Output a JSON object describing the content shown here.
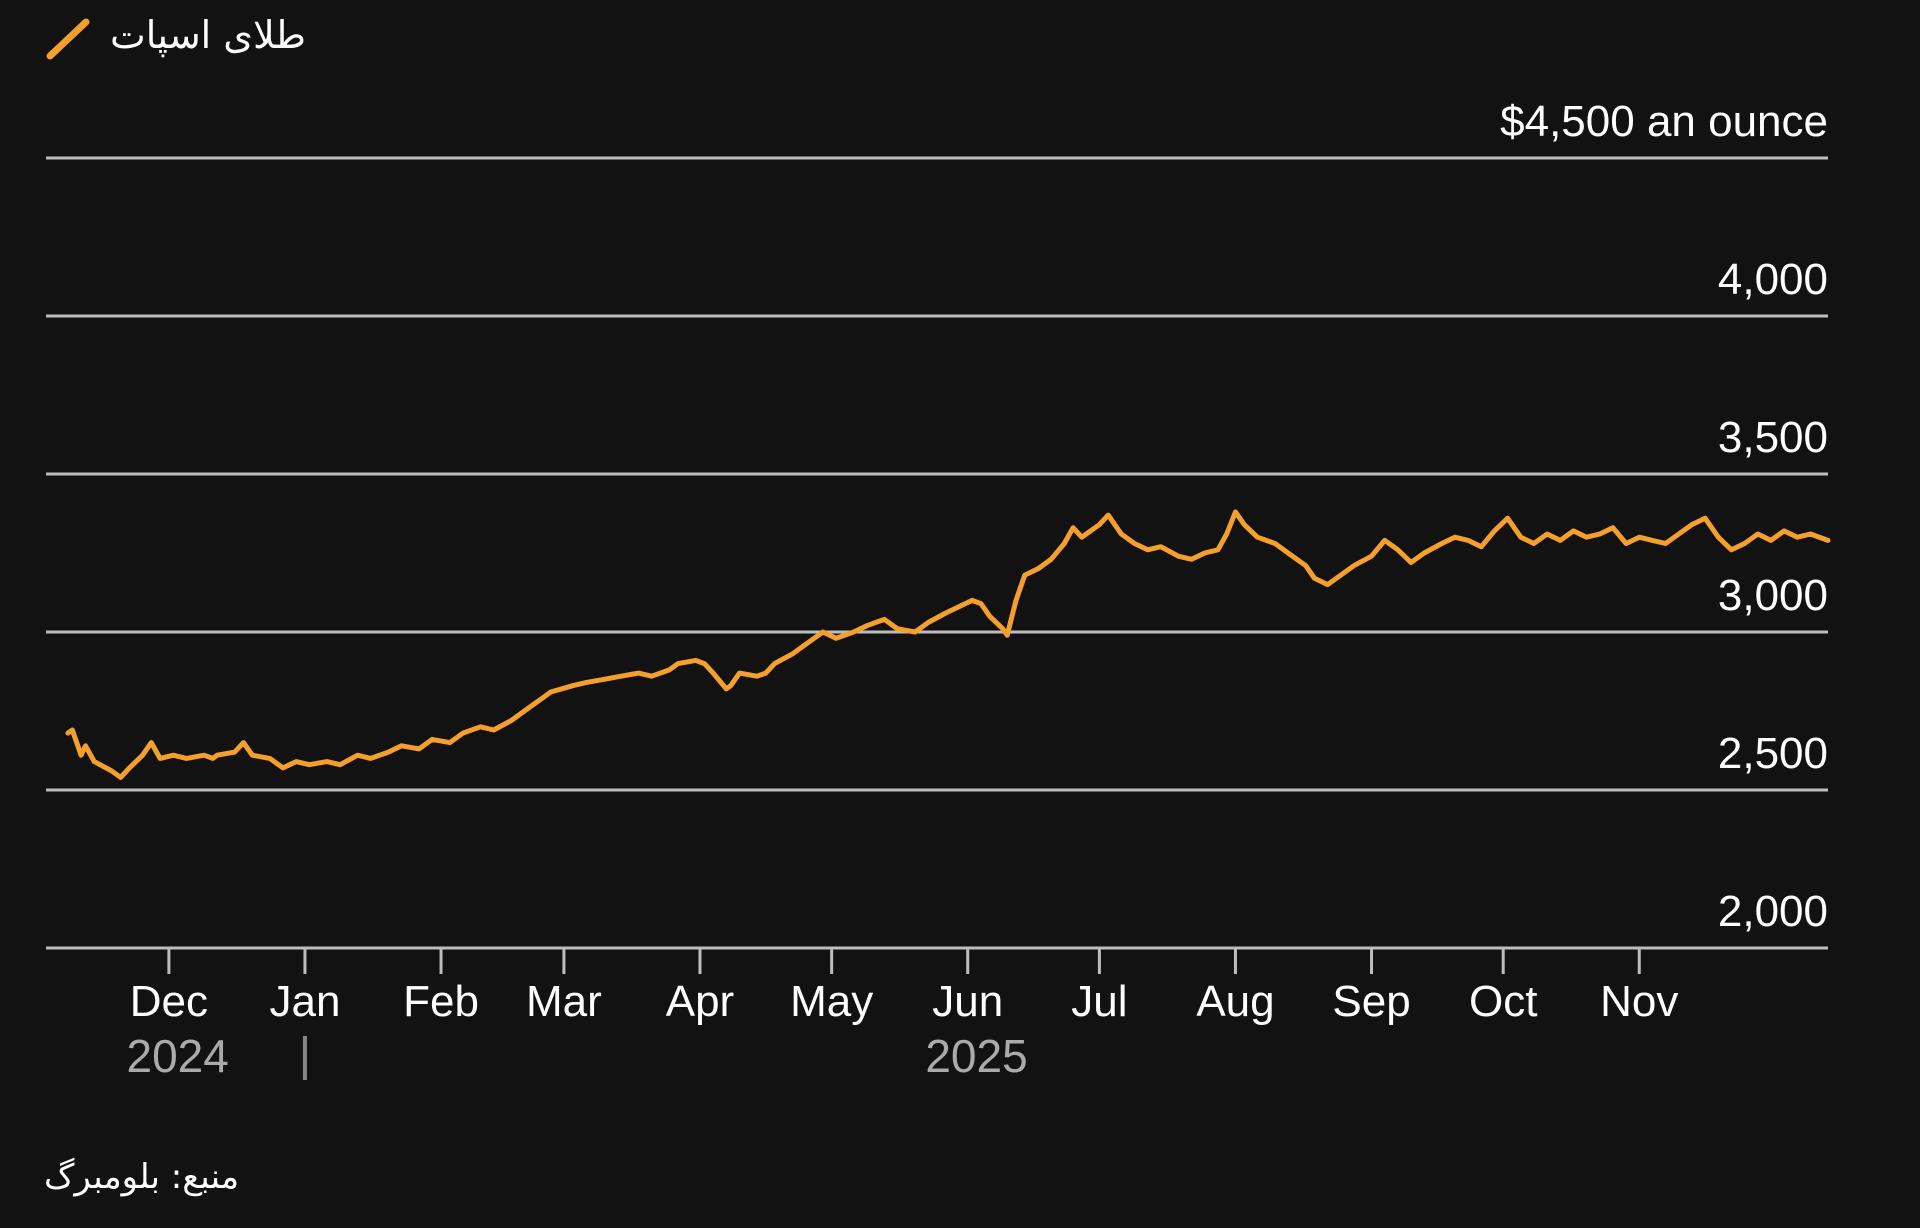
{
  "colors": {
    "background": "#121212",
    "line": "#F5A02A",
    "grid": "#bdbdbd",
    "text": "#ffffff",
    "muted": "#aaaaaa"
  },
  "legend": {
    "icon": "line-swatch-icon",
    "label": "طلای اسپات"
  },
  "source": "منبع: بلومبرگ",
  "chart_data": {
    "type": "line",
    "y_unit_label": "$4,500 an ounce",
    "ylim": [
      2000,
      4500
    ],
    "yticks": [
      {
        "value": 4500,
        "label": "$4,500 an ounce"
      },
      {
        "value": 4000,
        "label": "4,000"
      },
      {
        "value": 3500,
        "label": "3,500"
      },
      {
        "value": 3000,
        "label": "3,000"
      },
      {
        "value": 2500,
        "label": "2,500"
      },
      {
        "value": 2000,
        "label": "2,000"
      }
    ],
    "xlim": [
      "2024-11-03",
      "2025-12-14"
    ],
    "xticks": [
      {
        "date": "2024-12-01",
        "label": "Dec"
      },
      {
        "date": "2025-01-01",
        "label": "Jan"
      },
      {
        "date": "2025-02-01",
        "label": "Feb"
      },
      {
        "date": "2025-03-01",
        "label": "Mar"
      },
      {
        "date": "2025-04-01",
        "label": "Apr"
      },
      {
        "date": "2025-05-01",
        "label": "May"
      },
      {
        "date": "2025-06-01",
        "label": "Jun"
      },
      {
        "date": "2025-07-01",
        "label": "Jul"
      },
      {
        "date": "2025-08-01",
        "label": "Aug"
      },
      {
        "date": "2025-09-01",
        "label": "Sep"
      },
      {
        "date": "2025-10-01",
        "label": "Oct"
      },
      {
        "date": "2025-11-01",
        "label": "Nov"
      }
    ],
    "year_labels": [
      {
        "label": "2024",
        "date": "2024-12-03"
      },
      {
        "label": "2025",
        "date": "2025-06-03"
      }
    ],
    "year_separator_date": "2025-01-01",
    "grid": true,
    "series": [
      {
        "color": "#F5A02A",
        "points": [
          [
            "2024-11-08",
            2680
          ],
          [
            "2024-11-09",
            2690
          ],
          [
            "2024-11-11",
            2610
          ],
          [
            "2024-11-12",
            2640
          ],
          [
            "2024-11-14",
            2590
          ],
          [
            "2024-11-18",
            2560
          ],
          [
            "2024-11-20",
            2540
          ],
          [
            "2024-11-22",
            2570
          ],
          [
            "2024-11-25",
            2610
          ],
          [
            "2024-11-27",
            2650
          ],
          [
            "2024-11-29",
            2600
          ],
          [
            "2024-12-02",
            2610
          ],
          [
            "2024-12-05",
            2600
          ],
          [
            "2024-12-09",
            2610
          ],
          [
            "2024-12-11",
            2600
          ],
          [
            "2024-12-12",
            2610
          ],
          [
            "2024-12-16",
            2620
          ],
          [
            "2024-12-18",
            2650
          ],
          [
            "2024-12-20",
            2610
          ],
          [
            "2024-12-24",
            2600
          ],
          [
            "2024-12-27",
            2570
          ],
          [
            "2024-12-30",
            2590
          ],
          [
            "2025-01-02",
            2580
          ],
          [
            "2025-01-06",
            2590
          ],
          [
            "2025-01-09",
            2580
          ],
          [
            "2025-01-13",
            2610
          ],
          [
            "2025-01-16",
            2600
          ],
          [
            "2025-01-20",
            2620
          ],
          [
            "2025-01-23",
            2640
          ],
          [
            "2025-01-27",
            2630
          ],
          [
            "2025-01-30",
            2660
          ],
          [
            "2025-02-03",
            2650
          ],
          [
            "2025-02-06",
            2680
          ],
          [
            "2025-02-10",
            2700
          ],
          [
            "2025-02-13",
            2690
          ],
          [
            "2025-02-17",
            2720
          ],
          [
            "2025-02-19",
            2740
          ],
          [
            "2025-02-21",
            2760
          ],
          [
            "2025-02-24",
            2790
          ],
          [
            "2025-02-26",
            2810
          ],
          [
            "2025-03-03",
            2830
          ],
          [
            "2025-03-06",
            2840
          ],
          [
            "2025-03-10",
            2850
          ],
          [
            "2025-03-14",
            2860
          ],
          [
            "2025-03-18",
            2870
          ],
          [
            "2025-03-21",
            2860
          ],
          [
            "2025-03-25",
            2880
          ],
          [
            "2025-03-27",
            2900
          ],
          [
            "2025-03-31",
            2910
          ],
          [
            "2025-04-02",
            2900
          ],
          [
            "2025-04-04",
            2870
          ],
          [
            "2025-04-07",
            2820
          ],
          [
            "2025-04-08",
            2830
          ],
          [
            "2025-04-10",
            2870
          ],
          [
            "2025-04-14",
            2860
          ],
          [
            "2025-04-16",
            2870
          ],
          [
            "2025-04-18",
            2900
          ],
          [
            "2025-04-22",
            2930
          ],
          [
            "2025-04-25",
            2960
          ],
          [
            "2025-04-29",
            3000
          ],
          [
            "2025-05-02",
            2980
          ],
          [
            "2025-05-06",
            3000
          ],
          [
            "2025-05-09",
            3020
          ],
          [
            "2025-05-13",
            3040
          ],
          [
            "2025-05-16",
            3010
          ],
          [
            "2025-05-20",
            3000
          ],
          [
            "2025-05-23",
            3030
          ],
          [
            "2025-05-27",
            3060
          ],
          [
            "2025-05-30",
            3080
          ],
          [
            "2025-06-02",
            3100
          ],
          [
            "2025-06-04",
            3090
          ],
          [
            "2025-06-06",
            3050
          ],
          [
            "2025-06-09",
            3010
          ],
          [
            "2025-06-10",
            2990
          ],
          [
            "2025-06-12",
            3100
          ],
          [
            "2025-06-14",
            3180
          ],
          [
            "2025-06-17",
            3200
          ],
          [
            "2025-06-20",
            3230
          ],
          [
            "2025-06-23",
            3280
          ],
          [
            "2025-06-25",
            3330
          ],
          [
            "2025-06-27",
            3300
          ],
          [
            "2025-07-01",
            3340
          ],
          [
            "2025-07-03",
            3370
          ],
          [
            "2025-07-06",
            3310
          ],
          [
            "2025-07-09",
            3280
          ],
          [
            "2025-07-12",
            3260
          ],
          [
            "2025-07-15",
            3270
          ],
          [
            "2025-07-19",
            3240
          ],
          [
            "2025-07-22",
            3230
          ],
          [
            "2025-07-25",
            3250
          ],
          [
            "2025-07-28",
            3260
          ],
          [
            "2025-07-30",
            3310
          ],
          [
            "2025-08-01",
            3380
          ],
          [
            "2025-08-03",
            3340
          ],
          [
            "2025-08-06",
            3300
          ],
          [
            "2025-08-10",
            3280
          ],
          [
            "2025-08-14",
            3240
          ],
          [
            "2025-08-17",
            3210
          ],
          [
            "2025-08-19",
            3170
          ],
          [
            "2025-08-22",
            3150
          ],
          [
            "2025-08-25",
            3180
          ],
          [
            "2025-08-28",
            3210
          ],
          [
            "2025-09-01",
            3240
          ],
          [
            "2025-09-04",
            3290
          ],
          [
            "2025-09-07",
            3260
          ],
          [
            "2025-09-10",
            3220
          ],
          [
            "2025-09-13",
            3250
          ],
          [
            "2025-09-17",
            3280
          ],
          [
            "2025-09-20",
            3300
          ],
          [
            "2025-09-23",
            3290
          ],
          [
            "2025-09-26",
            3270
          ],
          [
            "2025-09-29",
            3320
          ],
          [
            "2025-10-02",
            3360
          ],
          [
            "2025-10-05",
            3300
          ],
          [
            "2025-10-08",
            3280
          ],
          [
            "2025-10-11",
            3310
          ],
          [
            "2025-10-14",
            3290
          ],
          [
            "2025-10-17",
            3320
          ],
          [
            "2025-10-20",
            3300
          ],
          [
            "2025-10-23",
            3310
          ],
          [
            "2025-10-26",
            3330
          ],
          [
            "2025-10-29",
            3280
          ],
          [
            "2025-11-01",
            3300
          ],
          [
            "2025-11-04",
            3290
          ],
          [
            "2025-11-07",
            3280
          ],
          [
            "2025-11-10",
            3310
          ],
          [
            "2025-11-13",
            3340
          ],
          [
            "2025-11-16",
            3360
          ],
          [
            "2025-11-19",
            3300
          ],
          [
            "2025-11-22",
            3260
          ],
          [
            "2025-11-25",
            3280
          ],
          [
            "2025-11-28",
            3310
          ],
          [
            "2025-12-01",
            3290
          ],
          [
            "2025-12-04",
            3320
          ],
          [
            "2025-12-07",
            3300
          ],
          [
            "2025-12-10",
            3310
          ],
          [
            "2025-12-14",
            3290
          ]
        ]
      }
    ]
  }
}
